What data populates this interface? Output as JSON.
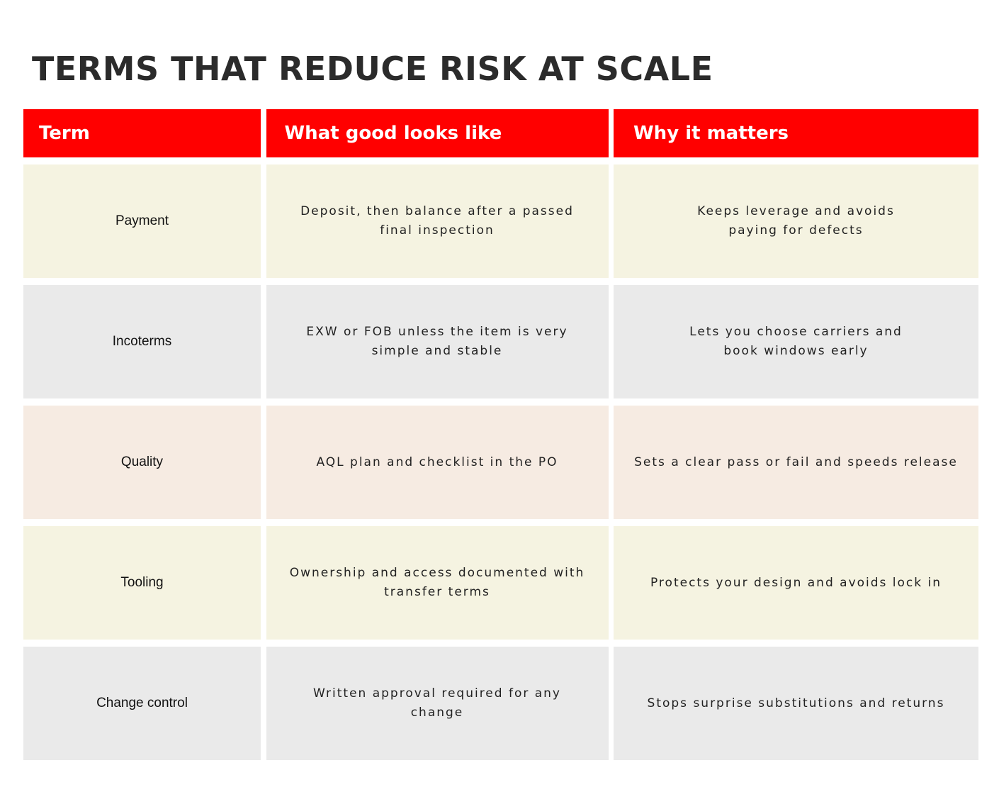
{
  "title": "TERMS THAT REDUCE RISK AT SCALE",
  "colors": {
    "header_bg": "#ff0000",
    "header_text": "#ffffff",
    "title_text": "#2b2b2b",
    "row_cream": "#f5f3e1",
    "row_gray": "#eaeaea",
    "row_peach": "#f6ebe2"
  },
  "table": {
    "headers": [
      "Term",
      "What good looks like",
      "Why it matters"
    ],
    "rows": [
      {
        "term": "Payment",
        "good": [
          "Deposit, then balance after a passed",
          "final inspection"
        ],
        "why": [
          "Keeps leverage and avoids",
          "paying for defects"
        ]
      },
      {
        "term": "Incoterms",
        "good": [
          "EXW or FOB unless the item is very",
          "simple and stable"
        ],
        "why": [
          "Lets you choose carriers and",
          "book windows early"
        ]
      },
      {
        "term": "Quality",
        "good": [
          "AQL plan and checklist in the PO"
        ],
        "why": [
          "Sets a clear pass or fail and speeds release"
        ]
      },
      {
        "term": "Tooling",
        "good": [
          "Ownership and access documented with",
          "transfer terms"
        ],
        "why": [
          "Protects your design and avoids lock in"
        ]
      },
      {
        "term": "Change control",
        "good": [
          "Written approval required for any change"
        ],
        "why": [
          "Stops surprise substitutions and returns"
        ]
      }
    ]
  }
}
